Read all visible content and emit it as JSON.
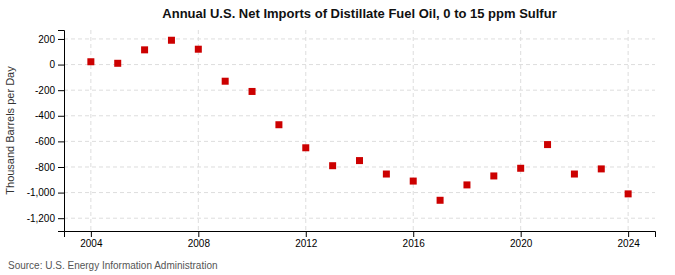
{
  "chart_data": {
    "type": "scatter",
    "title": "Annual U.S. Net Imports of Distillate Fuel Oil, 0 to 15 ppm Sulfur",
    "ylabel": "Thousand Barrels per Day",
    "annotations": [
      "Source: U.S. Energy Information Administration"
    ],
    "x": [
      2004,
      2005,
      2006,
      2007,
      2008,
      2009,
      2010,
      2011,
      2012,
      2013,
      2014,
      2015,
      2016,
      2017,
      2018,
      2019,
      2020,
      2021,
      2022,
      2023,
      2024
    ],
    "values": [
      22,
      10,
      115,
      190,
      120,
      -130,
      -210,
      -470,
      -650,
      -790,
      -750,
      -855,
      -910,
      -1060,
      -940,
      -870,
      -810,
      -625,
      -855,
      -815,
      -1010
    ],
    "color": "#cc0000",
    "marker": "square",
    "xlim": [
      2003,
      2025
    ],
    "xticks": [
      2004,
      2008,
      2012,
      2016,
      2020,
      2024
    ],
    "ylim": [
      -1300,
      270
    ],
    "yticks": [
      {
        "value": -1200,
        "label": "-1,200"
      },
      {
        "value": -1000,
        "label": "-1,000"
      },
      -800,
      -600,
      -400,
      -200,
      0,
      200
    ],
    "grid": true
  }
}
